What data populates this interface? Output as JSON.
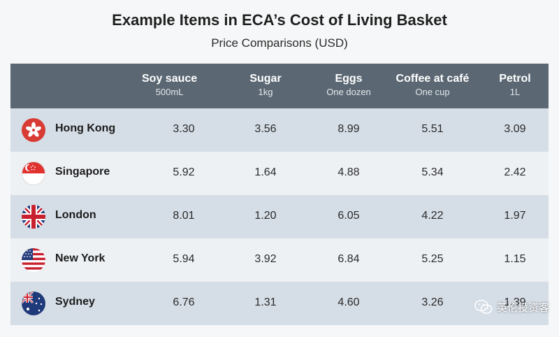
{
  "title": "Example Items in ECA’s Cost of Living Basket",
  "subtitle": "Price Comparisons (USD)",
  "columns": [
    {
      "name": "Soy sauce",
      "unit": "500mL"
    },
    {
      "name": "Sugar",
      "unit": "1kg"
    },
    {
      "name": "Eggs",
      "unit": "One dozen"
    },
    {
      "name": "Coffee at café",
      "unit": "One cup"
    },
    {
      "name": "Petrol",
      "unit": "1L"
    }
  ],
  "rows": [
    {
      "city": "Hong Kong",
      "flag_icon": "hong-kong-flag-icon",
      "values": [
        "3.30",
        "3.56",
        "8.99",
        "5.51",
        "3.09"
      ]
    },
    {
      "city": "Singapore",
      "flag_icon": "singapore-flag-icon",
      "values": [
        "5.92",
        "1.64",
        "4.88",
        "5.34",
        "2.42"
      ]
    },
    {
      "city": "London",
      "flag_icon": "uk-flag-icon",
      "values": [
        "8.01",
        "1.20",
        "6.05",
        "4.22",
        "1.97"
      ]
    },
    {
      "city": "New York",
      "flag_icon": "us-flag-icon",
      "values": [
        "5.94",
        "3.92",
        "6.84",
        "5.25",
        "1.15"
      ]
    },
    {
      "city": "Sydney",
      "flag_icon": "australia-flag-icon",
      "values": [
        "6.76",
        "1.31",
        "4.60",
        "3.26",
        "1.39"
      ]
    }
  ],
  "colors": {
    "header_bg": "#5b6873",
    "row_shade": "#d5dde6",
    "row_light": "#eef1f4"
  },
  "watermark": {
    "text": "英伦投资客",
    "icon": "wechat-icon"
  }
}
